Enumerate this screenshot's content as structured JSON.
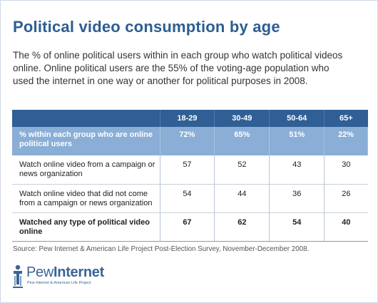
{
  "header": {
    "title": "Political video consumption by age",
    "subtitle": "The % of online political users within in each group who watch political videos online. Online political users are the 55% of the voting-age population who used the internet in one way or another for political purposes in 2008."
  },
  "chart_data": {
    "type": "table",
    "columns": [
      "",
      "18-29",
      "30-49",
      "50-64",
      "65+"
    ],
    "rows": [
      {
        "label": "% within each group who are online political users",
        "values": [
          "72%",
          "65%",
          "51%",
          "22%"
        ],
        "style": "highlight"
      },
      {
        "label": "Watch online video from a campaign or news organization",
        "values": [
          "57",
          "52",
          "43",
          "30"
        ],
        "style": "normal"
      },
      {
        "label": "Watch online video that did not come from a campaign or news organization",
        "values": [
          "54",
          "44",
          "36",
          "26"
        ],
        "style": "normal"
      },
      {
        "label": "Watched any type of political video online",
        "values": [
          "67",
          "62",
          "54",
          "40"
        ],
        "style": "bold"
      }
    ]
  },
  "footer": {
    "source": "Source: Pew Internet & American Life Project Post-Election Survey, November-December 2008.",
    "logo_name_light": "Pew",
    "logo_name_bold": "Internet",
    "logo_tagline": "Pew Internet & American Life Project"
  },
  "colors": {
    "title": "#2d5d92",
    "header_bg": "#2f5f95",
    "highlight_bg": "#8aaed6"
  },
  "icons": [
    "pew-logo-icon"
  ]
}
